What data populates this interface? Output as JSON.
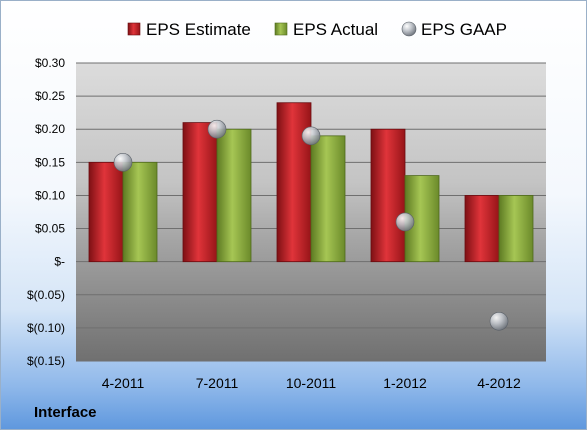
{
  "company": "Interface",
  "colors": {
    "estimate": "#c0242a",
    "actual": "#8cae3c",
    "gaap": "#b8bcc2"
  },
  "chart_data": {
    "type": "bar",
    "categories": [
      "4-2011",
      "7-2011",
      "10-2011",
      "1-2012",
      "4-2012"
    ],
    "series": [
      {
        "name": "EPS Estimate",
        "kind": "bar",
        "values": [
          0.15,
          0.21,
          0.24,
          0.2,
          0.1
        ]
      },
      {
        "name": "EPS Actual",
        "kind": "bar",
        "values": [
          0.15,
          0.2,
          0.19,
          0.13,
          0.1
        ]
      },
      {
        "name": "EPS GAAP",
        "kind": "marker",
        "values": [
          0.15,
          0.2,
          0.19,
          0.06,
          -0.09
        ]
      }
    ],
    "ylim": [
      -0.15,
      0.3
    ],
    "yticks": [
      0.3,
      0.25,
      0.2,
      0.15,
      0.1,
      0.05,
      0,
      -0.05,
      -0.1,
      -0.15
    ],
    "ytick_labels": [
      "$0.30",
      "$0.25",
      "$0.20",
      "$0.15",
      "$0.10",
      "$0.05",
      "$-",
      "$(0.05)",
      "$(0.10)",
      "$(0.15)"
    ],
    "grid": true,
    "legend_position": "top"
  }
}
